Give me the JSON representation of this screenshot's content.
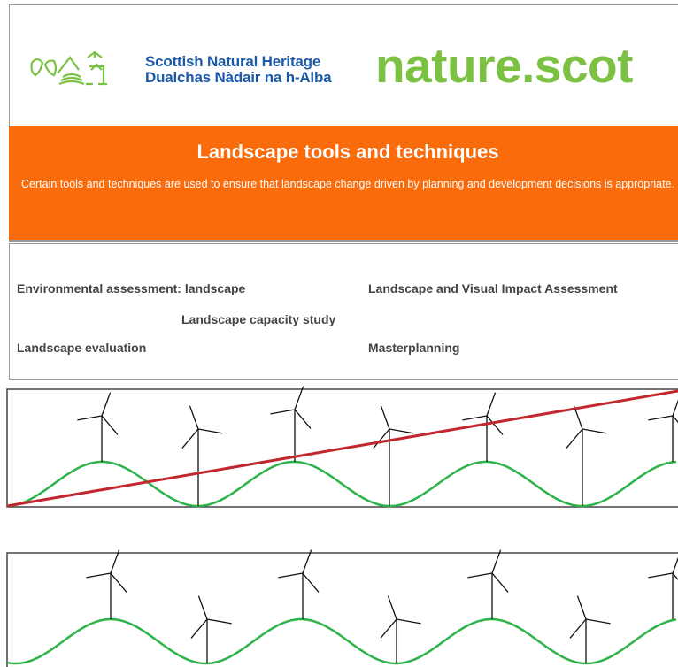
{
  "header": {
    "org_name": "Scottish Natural Heritage",
    "org_name_gaelic": "Dualchas Nàdair na h-Alba",
    "site": "nature.scot"
  },
  "banner": {
    "title": "Landscape tools and techniques",
    "description": "Certain tools and techniques are used to ensure that landscape change driven by planning and development decisions is appropriate."
  },
  "links": [
    "Environmental assessment: landscape",
    "Landscape and Visual Impact Assessment",
    "Landscape capacity study",
    "Landscape evaluation",
    "Masterplanning"
  ]
}
